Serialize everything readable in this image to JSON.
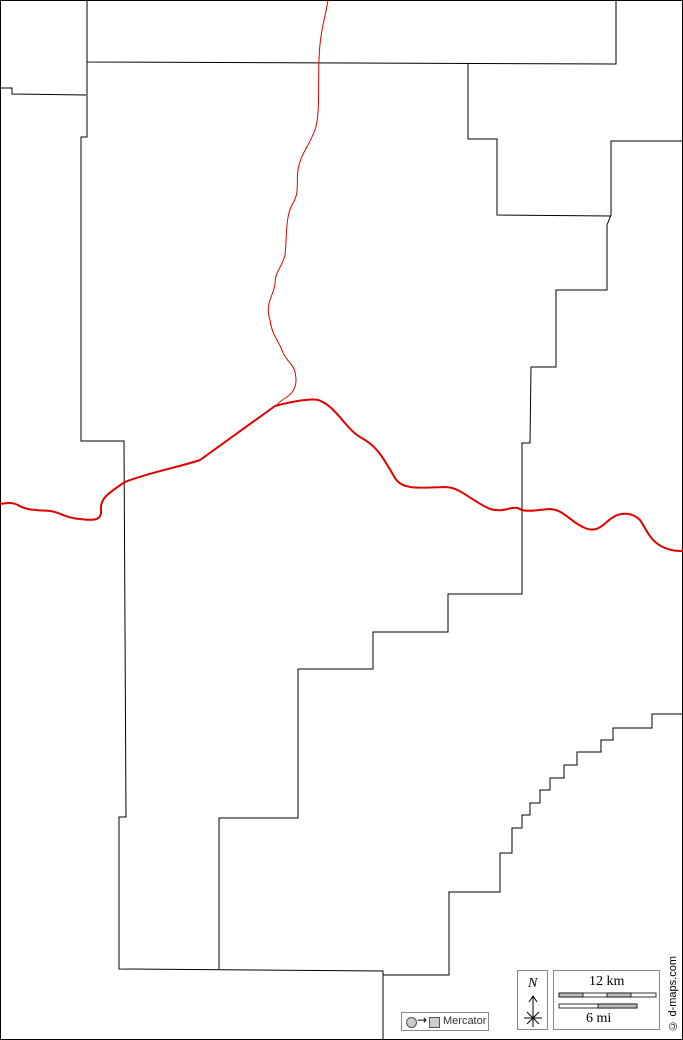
{
  "map": {
    "projection_label": "Mercator",
    "north_label": "N",
    "scale_km": "12 km",
    "scale_mi": "6 mi",
    "credit": "© d-maps.com",
    "colors": {
      "boundary": "#000000",
      "river": "#e00000",
      "background": "#ffffff"
    }
  }
}
